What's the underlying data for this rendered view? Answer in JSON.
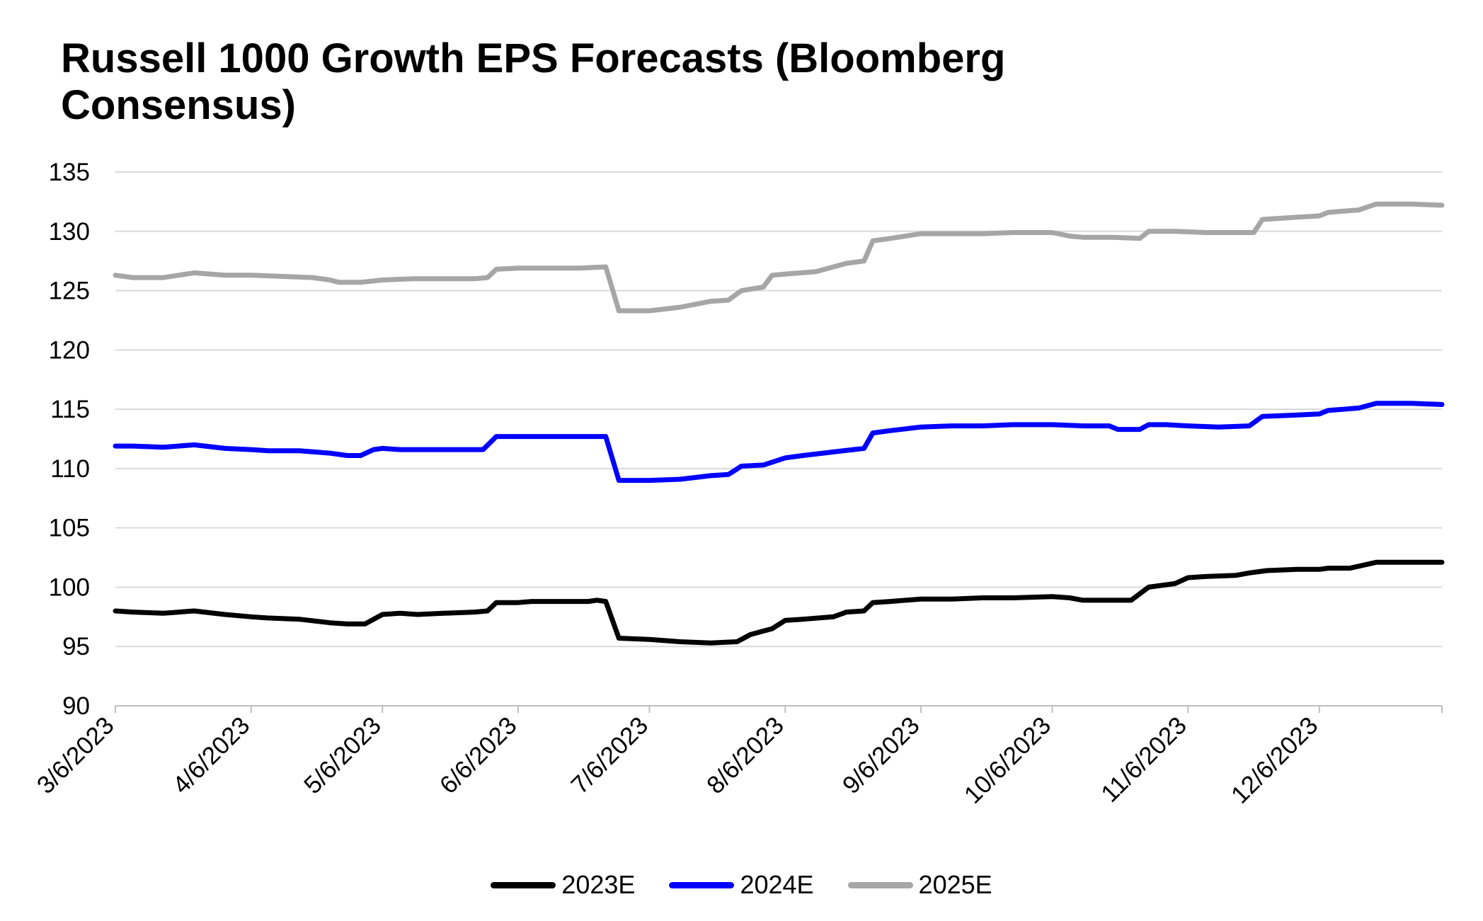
{
  "chart_data": {
    "type": "line",
    "title": "Russell 1000 Growth EPS Forecasts (Bloomberg Consensus)",
    "xlabel": "",
    "ylabel": "",
    "x_range": [
      "2023-03-06",
      "2024-01-03"
    ],
    "ylim": [
      90,
      135
    ],
    "y_ticks": [
      90,
      95,
      100,
      105,
      110,
      115,
      120,
      125,
      130,
      135
    ],
    "x_tick_labels": [
      {
        "date": "2023-03-06",
        "label": "3/6/2023"
      },
      {
        "date": "2023-04-06",
        "label": "4/6/2023"
      },
      {
        "date": "2023-05-06",
        "label": "5/6/2023"
      },
      {
        "date": "2023-06-06",
        "label": "6/6/2023"
      },
      {
        "date": "2023-07-06",
        "label": "7/6/2023"
      },
      {
        "date": "2023-08-06",
        "label": "8/6/2023"
      },
      {
        "date": "2023-09-06",
        "label": "9/6/2023"
      },
      {
        "date": "2023-10-06",
        "label": "10/6/2023"
      },
      {
        "date": "2023-11-06",
        "label": "11/6/2023"
      },
      {
        "date": "2023-12-06",
        "label": "12/6/2023"
      }
    ],
    "grid": true,
    "legend": "bottom",
    "series": [
      {
        "name": "2023E",
        "color": "#000000",
        "points": [
          [
            "2023-03-06",
            98.0
          ],
          [
            "2023-03-10",
            97.9
          ],
          [
            "2023-03-17",
            97.8
          ],
          [
            "2023-03-24",
            98.0
          ],
          [
            "2023-03-31",
            97.7
          ],
          [
            "2023-04-06",
            97.5
          ],
          [
            "2023-04-10",
            97.4
          ],
          [
            "2023-04-17",
            97.3
          ],
          [
            "2023-04-24",
            97.0
          ],
          [
            "2023-04-28",
            96.9
          ],
          [
            "2023-05-02",
            96.9
          ],
          [
            "2023-05-06",
            97.7
          ],
          [
            "2023-05-10",
            97.8
          ],
          [
            "2023-05-14",
            97.7
          ],
          [
            "2023-05-20",
            97.8
          ],
          [
            "2023-05-27",
            97.9
          ],
          [
            "2023-05-30",
            98.0
          ],
          [
            "2023-06-01",
            98.7
          ],
          [
            "2023-06-06",
            98.7
          ],
          [
            "2023-06-09",
            98.8
          ],
          [
            "2023-06-15",
            98.8
          ],
          [
            "2023-06-22",
            98.8
          ],
          [
            "2023-06-24",
            98.9
          ],
          [
            "2023-06-26",
            98.8
          ],
          [
            "2023-06-29",
            95.7
          ],
          [
            "2023-07-06",
            95.6
          ],
          [
            "2023-07-13",
            95.4
          ],
          [
            "2023-07-20",
            95.3
          ],
          [
            "2023-07-26",
            95.4
          ],
          [
            "2023-07-29",
            96.0
          ],
          [
            "2023-08-01",
            96.3
          ],
          [
            "2023-08-03",
            96.5
          ],
          [
            "2023-08-06",
            97.2
          ],
          [
            "2023-08-10",
            97.3
          ],
          [
            "2023-08-17",
            97.5
          ],
          [
            "2023-08-20",
            97.9
          ],
          [
            "2023-08-24",
            98.0
          ],
          [
            "2023-08-26",
            98.7
          ],
          [
            "2023-08-30",
            98.8
          ],
          [
            "2023-09-06",
            99.0
          ],
          [
            "2023-09-13",
            99.0
          ],
          [
            "2023-09-20",
            99.1
          ],
          [
            "2023-09-27",
            99.1
          ],
          [
            "2023-10-06",
            99.2
          ],
          [
            "2023-10-10",
            99.1
          ],
          [
            "2023-10-13",
            98.9
          ],
          [
            "2023-10-20",
            98.9
          ],
          [
            "2023-10-24",
            98.9
          ],
          [
            "2023-10-28",
            100.0
          ],
          [
            "2023-11-03",
            100.3
          ],
          [
            "2023-11-06",
            100.8
          ],
          [
            "2023-11-10",
            100.9
          ],
          [
            "2023-11-17",
            101.0
          ],
          [
            "2023-11-20",
            101.2
          ],
          [
            "2023-11-24",
            101.4
          ],
          [
            "2023-12-01",
            101.5
          ],
          [
            "2023-12-06",
            101.5
          ],
          [
            "2023-12-08",
            101.6
          ],
          [
            "2023-12-13",
            101.6
          ],
          [
            "2023-12-19",
            102.1
          ],
          [
            "2023-12-27",
            102.1
          ],
          [
            "2024-01-03",
            102.1
          ]
        ]
      },
      {
        "name": "2024E",
        "color": "#0000ff",
        "points": [
          [
            "2023-03-06",
            111.9
          ],
          [
            "2023-03-10",
            111.9
          ],
          [
            "2023-03-17",
            111.8
          ],
          [
            "2023-03-24",
            112.0
          ],
          [
            "2023-03-31",
            111.7
          ],
          [
            "2023-04-06",
            111.6
          ],
          [
            "2023-04-10",
            111.5
          ],
          [
            "2023-04-17",
            111.5
          ],
          [
            "2023-04-24",
            111.3
          ],
          [
            "2023-04-28",
            111.1
          ],
          [
            "2023-05-01",
            111.1
          ],
          [
            "2023-05-04",
            111.6
          ],
          [
            "2023-05-06",
            111.7
          ],
          [
            "2023-05-10",
            111.6
          ],
          [
            "2023-05-17",
            111.6
          ],
          [
            "2023-05-24",
            111.6
          ],
          [
            "2023-05-29",
            111.6
          ],
          [
            "2023-06-01",
            112.7
          ],
          [
            "2023-06-06",
            112.7
          ],
          [
            "2023-06-13",
            112.7
          ],
          [
            "2023-06-20",
            112.7
          ],
          [
            "2023-06-26",
            112.7
          ],
          [
            "2023-06-29",
            109.0
          ],
          [
            "2023-07-06",
            109.0
          ],
          [
            "2023-07-13",
            109.1
          ],
          [
            "2023-07-20",
            109.4
          ],
          [
            "2023-07-24",
            109.5
          ],
          [
            "2023-07-27",
            110.2
          ],
          [
            "2023-08-01",
            110.3
          ],
          [
            "2023-08-06",
            110.9
          ],
          [
            "2023-08-10",
            111.1
          ],
          [
            "2023-08-17",
            111.4
          ],
          [
            "2023-08-24",
            111.7
          ],
          [
            "2023-08-26",
            113.0
          ],
          [
            "2023-08-30",
            113.2
          ],
          [
            "2023-09-06",
            113.5
          ],
          [
            "2023-09-13",
            113.6
          ],
          [
            "2023-09-20",
            113.6
          ],
          [
            "2023-09-27",
            113.7
          ],
          [
            "2023-10-06",
            113.7
          ],
          [
            "2023-10-13",
            113.6
          ],
          [
            "2023-10-19",
            113.6
          ],
          [
            "2023-10-21",
            113.3
          ],
          [
            "2023-10-26",
            113.3
          ],
          [
            "2023-10-28",
            113.7
          ],
          [
            "2023-11-01",
            113.7
          ],
          [
            "2023-11-06",
            113.6
          ],
          [
            "2023-11-13",
            113.5
          ],
          [
            "2023-11-20",
            113.6
          ],
          [
            "2023-11-23",
            114.4
          ],
          [
            "2023-11-30",
            114.5
          ],
          [
            "2023-12-06",
            114.6
          ],
          [
            "2023-12-08",
            114.9
          ],
          [
            "2023-12-15",
            115.1
          ],
          [
            "2023-12-19",
            115.5
          ],
          [
            "2023-12-27",
            115.5
          ],
          [
            "2024-01-03",
            115.4
          ]
        ]
      },
      {
        "name": "2025E",
        "color": "#a6a6a6",
        "points": [
          [
            "2023-03-06",
            126.3
          ],
          [
            "2023-03-10",
            126.1
          ],
          [
            "2023-03-17",
            126.1
          ],
          [
            "2023-03-24",
            126.5
          ],
          [
            "2023-03-31",
            126.3
          ],
          [
            "2023-04-06",
            126.3
          ],
          [
            "2023-04-13",
            126.2
          ],
          [
            "2023-04-20",
            126.1
          ],
          [
            "2023-04-24",
            125.9
          ],
          [
            "2023-04-26",
            125.7
          ],
          [
            "2023-05-01",
            125.7
          ],
          [
            "2023-05-06",
            125.9
          ],
          [
            "2023-05-13",
            126.0
          ],
          [
            "2023-05-20",
            126.0
          ],
          [
            "2023-05-27",
            126.0
          ],
          [
            "2023-05-30",
            126.1
          ],
          [
            "2023-06-01",
            126.8
          ],
          [
            "2023-06-06",
            126.9
          ],
          [
            "2023-06-13",
            126.9
          ],
          [
            "2023-06-20",
            126.9
          ],
          [
            "2023-06-26",
            127.0
          ],
          [
            "2023-06-29",
            123.3
          ],
          [
            "2023-07-06",
            123.3
          ],
          [
            "2023-07-13",
            123.6
          ],
          [
            "2023-07-20",
            124.1
          ],
          [
            "2023-07-24",
            124.2
          ],
          [
            "2023-07-27",
            125.0
          ],
          [
            "2023-08-01",
            125.3
          ],
          [
            "2023-08-03",
            126.3
          ],
          [
            "2023-08-06",
            126.4
          ],
          [
            "2023-08-13",
            126.6
          ],
          [
            "2023-08-20",
            127.3
          ],
          [
            "2023-08-24",
            127.5
          ],
          [
            "2023-08-26",
            129.2
          ],
          [
            "2023-08-30",
            129.4
          ],
          [
            "2023-09-06",
            129.8
          ],
          [
            "2023-09-13",
            129.8
          ],
          [
            "2023-09-20",
            129.8
          ],
          [
            "2023-09-27",
            129.9
          ],
          [
            "2023-10-06",
            129.9
          ],
          [
            "2023-10-10",
            129.6
          ],
          [
            "2023-10-13",
            129.5
          ],
          [
            "2023-10-20",
            129.5
          ],
          [
            "2023-10-26",
            129.4
          ],
          [
            "2023-10-28",
            130.0
          ],
          [
            "2023-11-03",
            130.0
          ],
          [
            "2023-11-10",
            129.9
          ],
          [
            "2023-11-17",
            129.9
          ],
          [
            "2023-11-21",
            129.9
          ],
          [
            "2023-11-23",
            131.0
          ],
          [
            "2023-12-01",
            131.2
          ],
          [
            "2023-12-06",
            131.3
          ],
          [
            "2023-12-08",
            131.6
          ],
          [
            "2023-12-15",
            131.8
          ],
          [
            "2023-12-19",
            132.3
          ],
          [
            "2023-12-27",
            132.3
          ],
          [
            "2024-01-03",
            132.2
          ]
        ]
      }
    ]
  }
}
